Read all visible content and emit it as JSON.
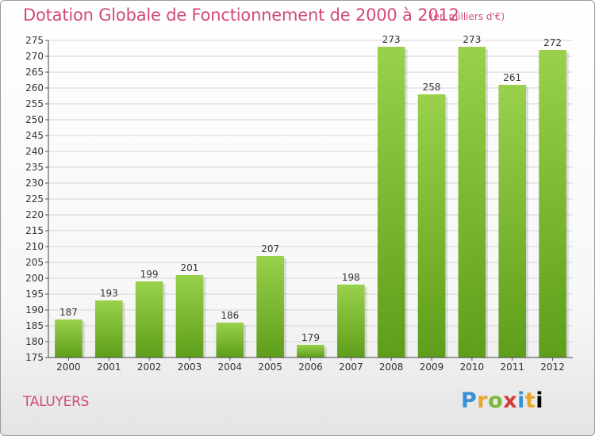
{
  "header": {
    "title": "Dotation Globale de Fonctionnement de 2000 à 2012",
    "unit_note": "(en milliers d'€)"
  },
  "footer": {
    "commune": "TALUYERS",
    "logo": [
      "P",
      "r",
      "o",
      "x",
      "i",
      "t",
      "i"
    ]
  },
  "chart_data": {
    "type": "bar",
    "title": "Dotation Globale de Fonctionnement de 2000 à 2012",
    "subtitle": "(en milliers d'€)",
    "xlabel": "",
    "ylabel": "",
    "categories": [
      "2000",
      "2001",
      "2002",
      "2003",
      "2004",
      "2005",
      "2006",
      "2007",
      "2008",
      "2009",
      "2010",
      "2011",
      "2012"
    ],
    "values": [
      187,
      193,
      199,
      201,
      186,
      207,
      179,
      198,
      273,
      258,
      273,
      261,
      272
    ],
    "ylim": [
      175,
      275
    ],
    "yticks": [
      175,
      180,
      185,
      190,
      195,
      200,
      205,
      210,
      215,
      220,
      225,
      230,
      235,
      240,
      245,
      250,
      255,
      260,
      265,
      270,
      275
    ],
    "grid": true,
    "bar_color_top": "#99d14c",
    "bar_color_bottom": "#5e9e1a",
    "legend": "none"
  }
}
